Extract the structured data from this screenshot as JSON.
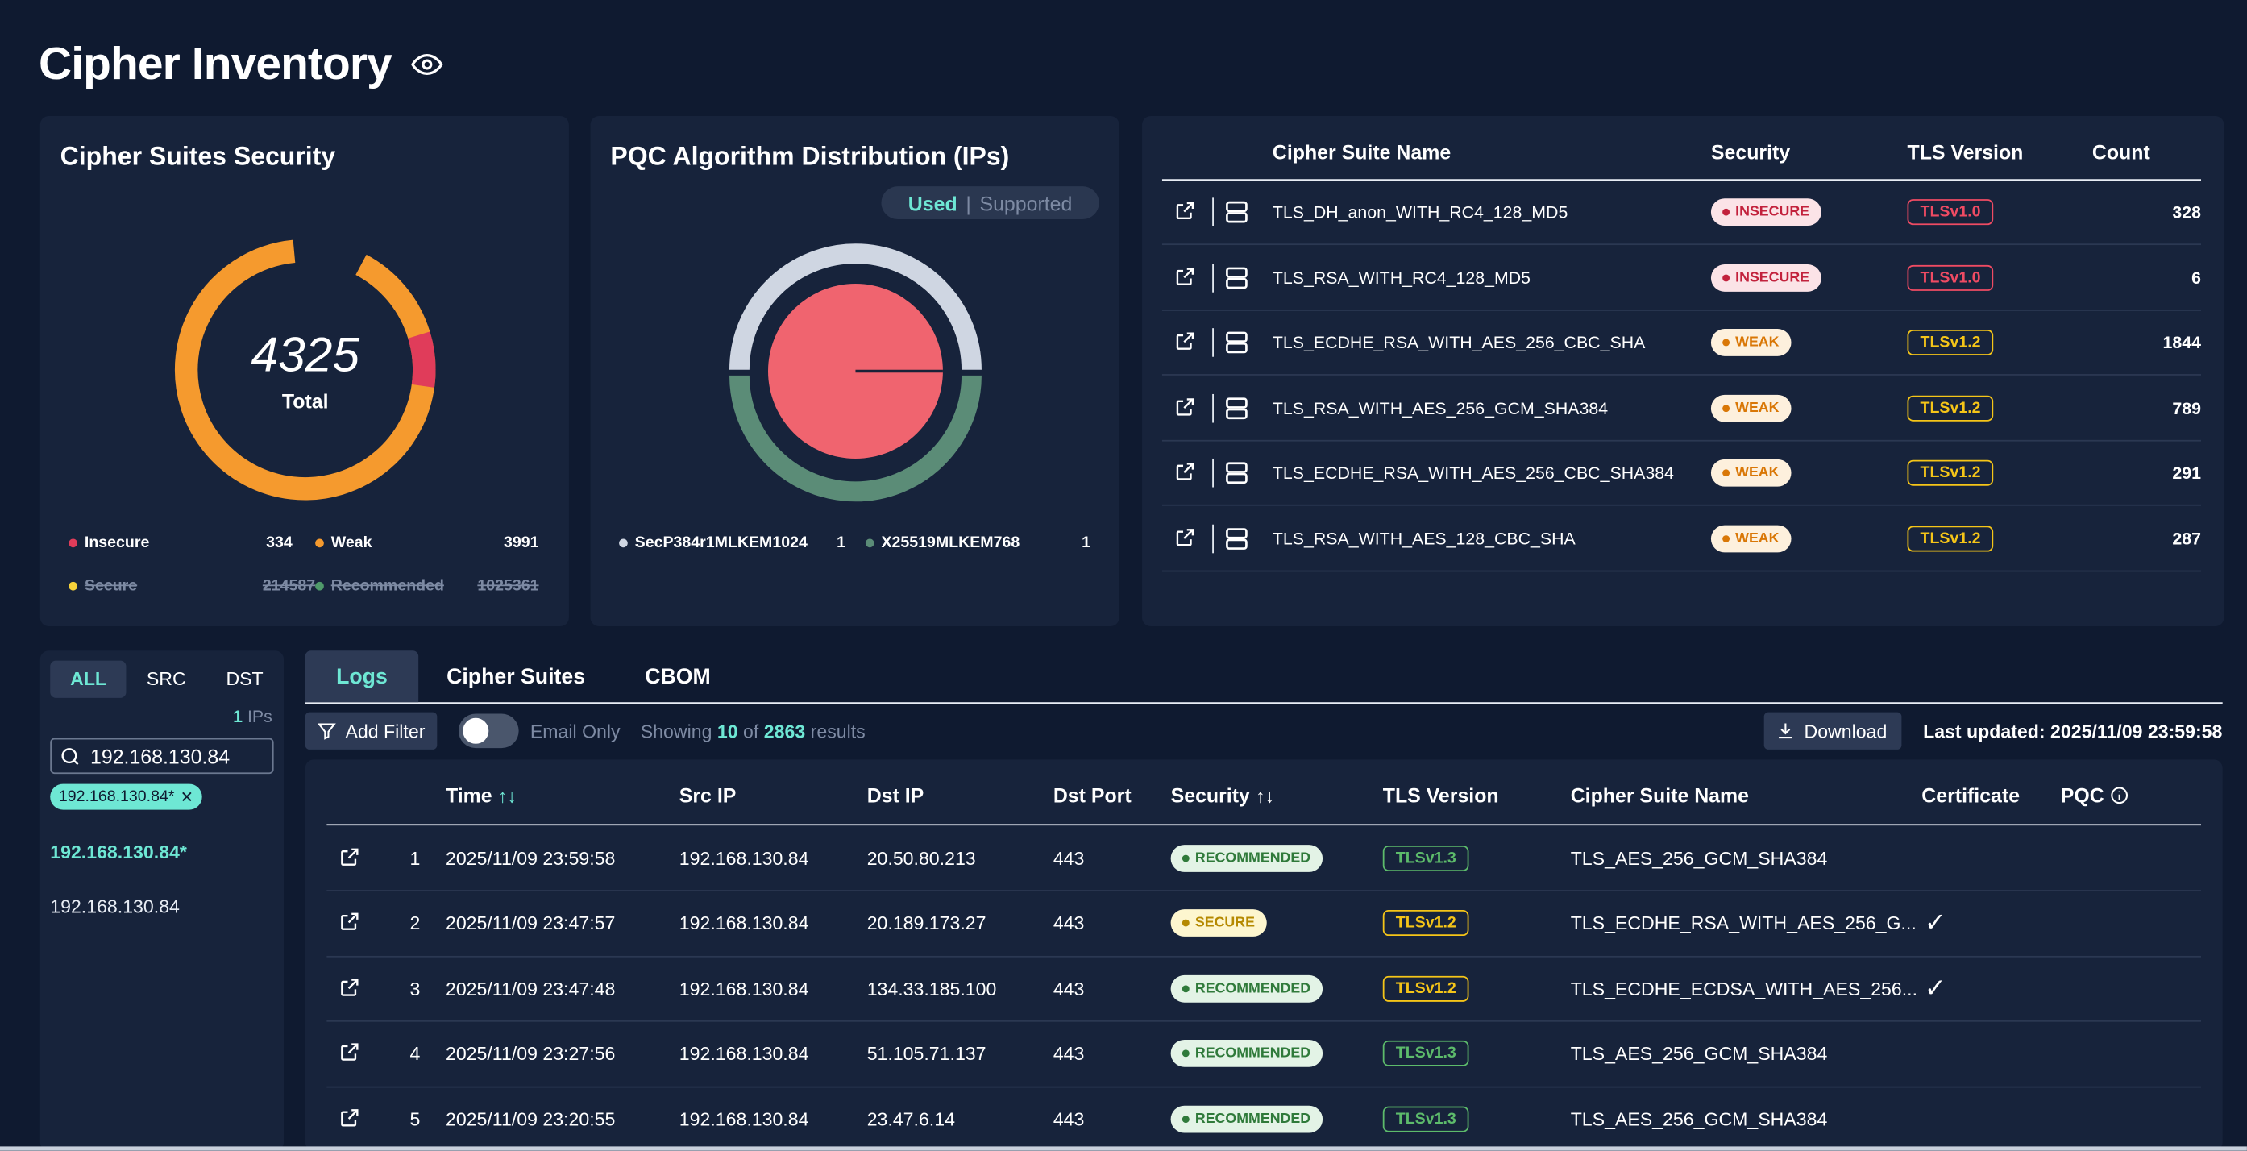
{
  "page": {
    "title": "Cipher Inventory"
  },
  "security_card": {
    "title": "Cipher Suites Security",
    "total": "4325",
    "total_label": "Total",
    "legend": [
      {
        "label": "Insecure",
        "value": "334",
        "color": "#e03c5a",
        "struck": false
      },
      {
        "label": "Weak",
        "value": "3991",
        "color": "#f59a2e",
        "struck": false
      },
      {
        "label": "Secure",
        "value": "214587",
        "color": "#f5d13a",
        "struck": true
      },
      {
        "label": "Recommended",
        "value": "1025361",
        "color": "#4f9a6a",
        "struck": true
      }
    ]
  },
  "pqc_card": {
    "title": "PQC Algorithm Distribution (IPs)",
    "toggle_on": "Used",
    "toggle_sep": "|",
    "toggle_off": "Supported",
    "legend": [
      {
        "label": "SecP384r1MLKEM1024",
        "value": "1",
        "color": "#cfd6e2"
      },
      {
        "label": "X25519MLKEM768",
        "value": "1",
        "color": "#5b8c77"
      }
    ]
  },
  "suites_table": {
    "headers": {
      "name": "Cipher Suite Name",
      "security": "Security",
      "tls": "TLS Version",
      "count": "Count"
    },
    "rows": [
      {
        "name": "TLS_DH_anon_WITH_RC4_128_MD5",
        "security": "INSECURE",
        "tls": "TLSv1.0",
        "count": "328"
      },
      {
        "name": "TLS_RSA_WITH_RC4_128_MD5",
        "security": "INSECURE",
        "tls": "TLSv1.0",
        "count": "6"
      },
      {
        "name": "TLS_ECDHE_RSA_WITH_AES_256_CBC_SHA",
        "security": "WEAK",
        "tls": "TLSv1.2",
        "count": "1844"
      },
      {
        "name": "TLS_RSA_WITH_AES_256_GCM_SHA384",
        "security": "WEAK",
        "tls": "TLSv1.2",
        "count": "789"
      },
      {
        "name": "TLS_ECDHE_RSA_WITH_AES_256_CBC_SHA384",
        "security": "WEAK",
        "tls": "TLSv1.2",
        "count": "291"
      },
      {
        "name": "TLS_RSA_WITH_AES_128_CBC_SHA",
        "security": "WEAK",
        "tls": "TLSv1.2",
        "count": "287"
      }
    ]
  },
  "ip_panel": {
    "segments": [
      "ALL",
      "SRC",
      "DST"
    ],
    "count": "1",
    "count_label": "IPs",
    "search_value": "192.168.130.84",
    "chip": "192.168.130.84*",
    "items": [
      "192.168.130.84*",
      "192.168.130.84"
    ]
  },
  "tabs": [
    "Logs",
    "Cipher Suites",
    "CBOM"
  ],
  "toolbar": {
    "add_filter": "Add Filter",
    "email_only": "Email Only",
    "showing_prefix": "Showing",
    "showing_count": "10",
    "showing_of": "of",
    "showing_total": "2863",
    "showing_suffix": "results",
    "download": "Download",
    "last_updated": "Last updated: 2025/11/09 23:59:58"
  },
  "logs_table": {
    "headers": {
      "time": "Time",
      "src": "Src IP",
      "dst": "Dst IP",
      "port": "Dst Port",
      "security": "Security",
      "tls": "TLS Version",
      "cipher": "Cipher Suite Name",
      "cert": "Certificate",
      "pqc": "PQC"
    },
    "rows": [
      {
        "n": "1",
        "time": "2025/11/09 23:59:58",
        "src": "192.168.130.84",
        "dst": "20.50.80.213",
        "port": "443",
        "security": "RECOMMENDED",
        "tls": "TLSv1.3",
        "cipher": "TLS_AES_256_GCM_SHA384",
        "cert": ""
      },
      {
        "n": "2",
        "time": "2025/11/09 23:47:57",
        "src": "192.168.130.84",
        "dst": "20.189.173.27",
        "port": "443",
        "security": "SECURE",
        "tls": "TLSv1.2",
        "cipher": "TLS_ECDHE_RSA_WITH_AES_256_G...",
        "cert": "✓"
      },
      {
        "n": "3",
        "time": "2025/11/09 23:47:48",
        "src": "192.168.130.84",
        "dst": "134.33.185.100",
        "port": "443",
        "security": "RECOMMENDED",
        "tls": "TLSv1.2",
        "cipher": "TLS_ECDHE_ECDSA_WITH_AES_256...",
        "cert": "✓"
      },
      {
        "n": "4",
        "time": "2025/11/09 23:27:56",
        "src": "192.168.130.84",
        "dst": "51.105.71.137",
        "port": "443",
        "security": "RECOMMENDED",
        "tls": "TLSv1.3",
        "cipher": "TLS_AES_256_GCM_SHA384",
        "cert": ""
      },
      {
        "n": "5",
        "time": "2025/11/09 23:20:55",
        "src": "192.168.130.84",
        "dst": "23.47.6.14",
        "port": "443",
        "security": "RECOMMENDED",
        "tls": "TLSv1.3",
        "cipher": "TLS_AES_256_GCM_SHA384",
        "cert": ""
      }
    ]
  },
  "colors": {
    "accent": "#6ee7d4",
    "bg": "#0f1a30",
    "card": "#17233b",
    "insecure": "#e03c5a",
    "weak": "#f59a2e"
  }
}
